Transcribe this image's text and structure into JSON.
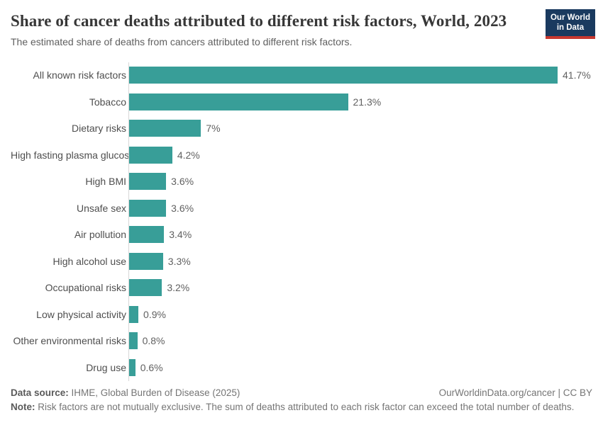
{
  "header": {
    "title": "Share of cancer deaths attributed to different risk factors, World, 2023",
    "subtitle": "The estimated share of deaths from cancers attributed to different risk factors.",
    "logo": {
      "line1": "Our World",
      "line2": "in Data"
    }
  },
  "chart_data": {
    "type": "bar",
    "orientation": "horizontal",
    "title": "Share of cancer deaths attributed to different risk factors, World, 2023",
    "categories": [
      "All known risk factors",
      "Tobacco",
      "Dietary risks",
      "High fasting plasma glucose",
      "High BMI",
      "Unsafe sex",
      "Air pollution",
      "High alcohol use",
      "Occupational risks",
      "Low physical activity",
      "Other environmental risks",
      "Drug use"
    ],
    "values": [
      41.7,
      21.3,
      7,
      4.2,
      3.6,
      3.6,
      3.4,
      3.3,
      3.2,
      0.9,
      0.8,
      0.6
    ],
    "value_labels": [
      "41.7%",
      "21.3%",
      "7%",
      "4.2%",
      "3.6%",
      "3.6%",
      "3.4%",
      "3.3%",
      "3.2%",
      "0.9%",
      "0.8%",
      "0.6%"
    ],
    "xlabel": "",
    "ylabel": "",
    "xlim": [
      0,
      41.7
    ],
    "grid": false,
    "legend": false,
    "bar_color": "#389E98",
    "unit": "%"
  },
  "footer": {
    "data_source_label": "Data source:",
    "data_source_text": " IHME, Global Burden of Disease (2025)",
    "attribution": "OurWorldinData.org/cancer | CC BY",
    "note_label": "Note:",
    "note_text": " Risk factors are not mutually exclusive. The sum of deaths attributed to each risk factor can exceed the total number of deaths."
  }
}
